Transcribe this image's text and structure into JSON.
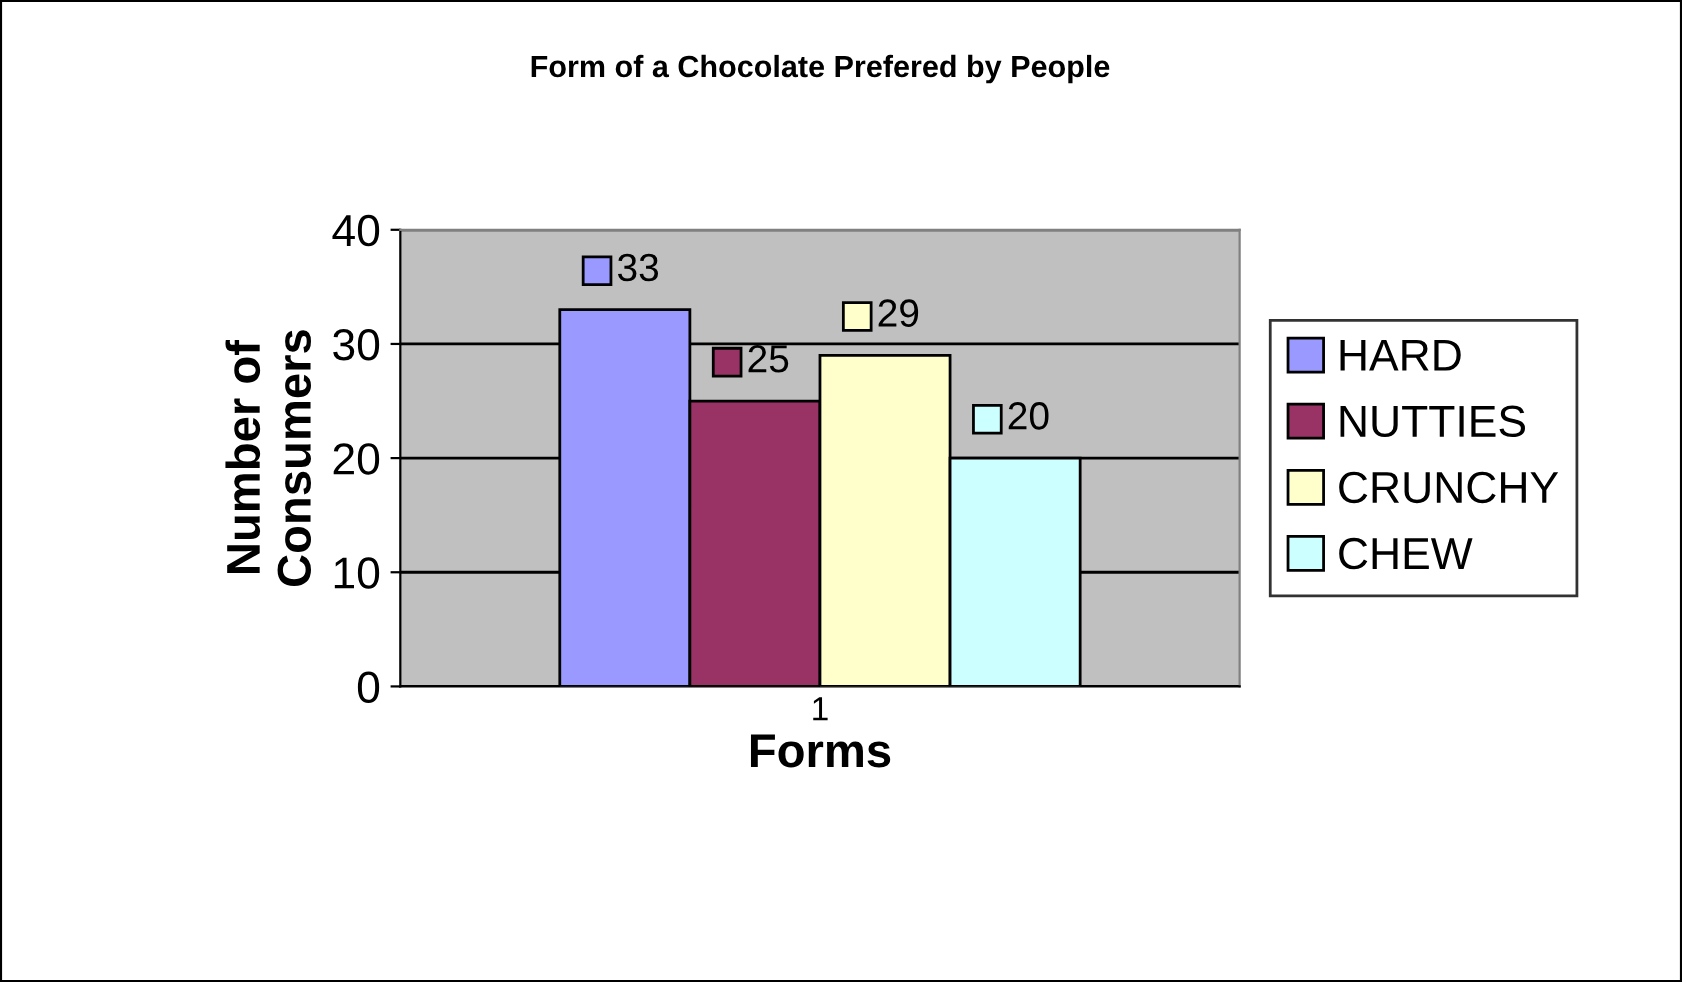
{
  "chart_data": {
    "type": "bar",
    "title": "Form of a Chocolate Prefered by People",
    "xlabel": "Forms",
    "ylabel": "Number of\nConsumers",
    "categories": [
      "1"
    ],
    "series": [
      {
        "name": "HARD",
        "color": "#9999ff",
        "values": [
          33
        ]
      },
      {
        "name": "NUTTIES",
        "color": "#993366",
        "values": [
          25
        ]
      },
      {
        "name": "CRUNCHY",
        "color": "#ffffcc",
        "values": [
          29
        ]
      },
      {
        "name": "CHEW",
        "color": "#ccffff",
        "values": [
          20
        ]
      }
    ],
    "ylim": [
      0,
      40
    ],
    "yticks": [
      0,
      10,
      20,
      30,
      40
    ],
    "grid": "y",
    "legend": "right",
    "data_labels": true
  }
}
